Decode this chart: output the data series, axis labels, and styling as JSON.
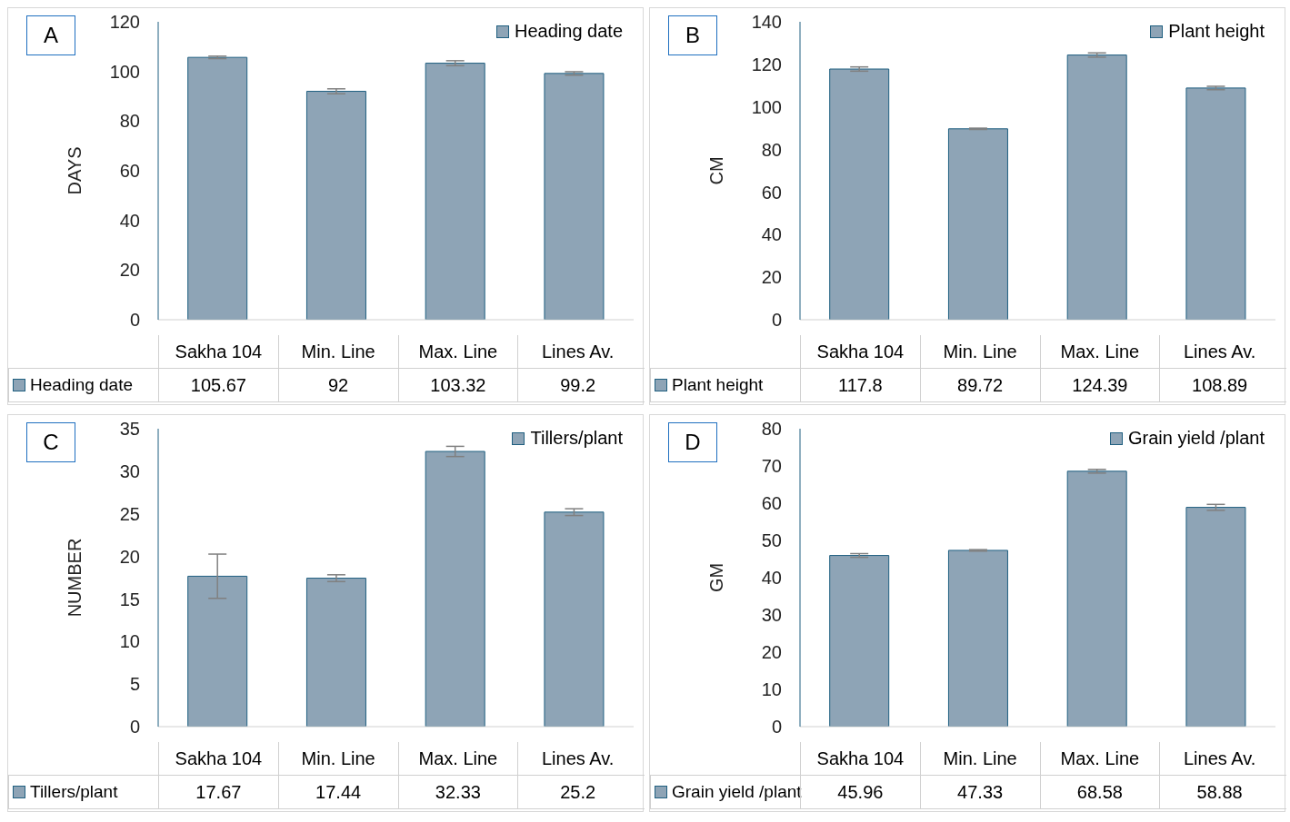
{
  "chart_data": [
    {
      "type": "bar",
      "ylabel": "DAYS",
      "annotations": [
        "A"
      ],
      "categories": [
        "Sakha 104",
        "Min. Line",
        "Max. Line",
        "Lines Av."
      ],
      "series": [
        {
          "name": "Heading date",
          "color": "#8ea4b6",
          "values": [
            105.67,
            92,
            103.32,
            99.2
          ],
          "errors": [
            0.5,
            1,
            1,
            0.7
          ]
        }
      ],
      "ylim": [
        0,
        120
      ],
      "yticks": [
        0,
        20,
        40,
        60,
        80,
        100,
        120
      ],
      "legend": "top right",
      "data_labels": true
    },
    {
      "type": "bar",
      "ylabel": "CM",
      "annotations": [
        "B"
      ],
      "categories": [
        "Sakha 104",
        "Min. Line",
        "Max. Line",
        "Lines Av."
      ],
      "series": [
        {
          "name": "Plant height",
          "color": "#8ea4b6",
          "values": [
            117.8,
            89.72,
            124.39,
            108.89
          ],
          "errors": [
            1,
            0.3,
            1,
            0.8
          ]
        }
      ],
      "ylim": [
        0,
        140
      ],
      "yticks": [
        0,
        20,
        40,
        60,
        80,
        100,
        120,
        140
      ],
      "legend": "top right",
      "data_labels": true
    },
    {
      "type": "bar",
      "ylabel": "NUMBER",
      "annotations": [
        "C"
      ],
      "categories": [
        "Sakha 104",
        "Min. Line",
        "Max. Line",
        "Lines Av."
      ],
      "series": [
        {
          "name": "Tillers/plant",
          "color": "#8ea4b6",
          "values": [
            17.67,
            17.44,
            32.33,
            25.2
          ],
          "errors": [
            2.6,
            0.4,
            0.6,
            0.4
          ]
        }
      ],
      "ylim": [
        0,
        35
      ],
      "yticks": [
        0,
        5,
        10,
        15,
        20,
        25,
        30,
        35
      ],
      "legend": "top right",
      "data_labels": true
    },
    {
      "type": "bar",
      "ylabel": "GM",
      "annotations": [
        "D"
      ],
      "categories": [
        "Sakha 104",
        "Min. Line",
        "Max. Line",
        "Lines Av."
      ],
      "series": [
        {
          "name": "Grain yield /plant",
          "color": "#8ea4b6",
          "values": [
            45.96,
            47.33,
            68.58,
            58.88
          ],
          "errors": [
            0.5,
            0.2,
            0.5,
            0.8
          ]
        }
      ],
      "ylim": [
        0,
        80
      ],
      "yticks": [
        0,
        10,
        20,
        30,
        40,
        50,
        60,
        70,
        80
      ],
      "legend": "top right",
      "data_labels": true
    }
  ]
}
